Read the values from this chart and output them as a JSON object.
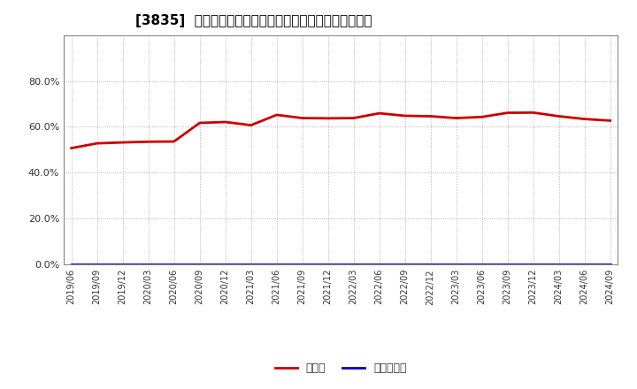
{
  "title": "[3835]  現須金、有利子負債の総資産に対する比率の推移",
  "x_labels": [
    "2019/06",
    "2019/09",
    "2019/12",
    "2020/03",
    "2020/06",
    "2020/09",
    "2020/12",
    "2021/03",
    "2021/06",
    "2021/09",
    "2021/12",
    "2022/03",
    "2022/06",
    "2022/09",
    "2022/12",
    "2023/03",
    "2023/06",
    "2023/09",
    "2023/12",
    "2024/03",
    "2024/06",
    "2024/09"
  ],
  "cash_values": [
    0.507,
    0.528,
    0.532,
    0.535,
    0.536,
    0.617,
    0.621,
    0.607,
    0.652,
    0.638,
    0.637,
    0.638,
    0.659,
    0.648,
    0.646,
    0.638,
    0.643,
    0.661,
    0.662,
    0.646,
    0.634,
    0.627
  ],
  "debt_values": [
    0.0,
    0.0,
    0.0,
    0.0,
    0.0,
    0.0,
    0.0,
    0.0,
    0.0,
    0.0,
    0.0,
    0.0,
    0.0,
    0.0,
    0.0,
    0.0,
    0.0,
    0.0,
    0.0,
    0.0,
    0.0,
    0.0
  ],
  "cash_color": "#cc0000",
  "debt_color": "#0000cc",
  "legend_cash": "現須金",
  "legend_debt": "有利子負債",
  "ylim": [
    0.0,
    1.0
  ],
  "yticks": [
    0.0,
    0.2,
    0.4,
    0.6,
    0.8
  ],
  "background_color": "#ffffff",
  "plot_bg_color": "#ffffff",
  "grid_color": "#999999",
  "title_fontsize": 11,
  "line_width": 2.0,
  "legend_fontsize": 9,
  "tick_fontsize": 8,
  "xtick_fontsize": 7
}
